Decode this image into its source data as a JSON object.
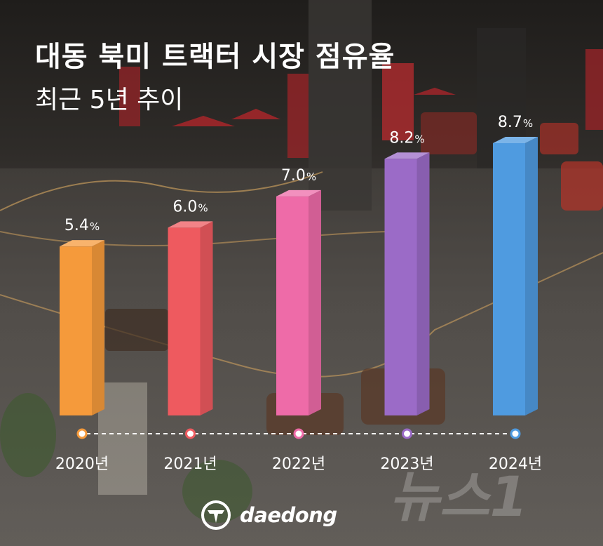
{
  "title": "대동 북미 트랙터 시장 점유율",
  "subtitle": "최근 5년 추이",
  "chart_data": {
    "type": "bar",
    "title": "대동 북미 트랙터 시장 점유율",
    "subtitle": "최근 5년 추이",
    "categories": [
      "2020년",
      "2021년",
      "2022년",
      "2023년",
      "2024년"
    ],
    "values": [
      5.4,
      6.0,
      7.0,
      8.2,
      8.7
    ],
    "labels": [
      "5.4",
      "6.0",
      "7.0",
      "8.2",
      "8.7"
    ],
    "unit": "%",
    "colors": [
      "#f59a3b",
      "#ee5a5f",
      "#ee6ba8",
      "#9b6bc7",
      "#4f9be0"
    ],
    "grid": false,
    "legend": "none"
  },
  "brand": {
    "name": "daedong"
  },
  "watermark": {
    "text": "뉴스1"
  }
}
